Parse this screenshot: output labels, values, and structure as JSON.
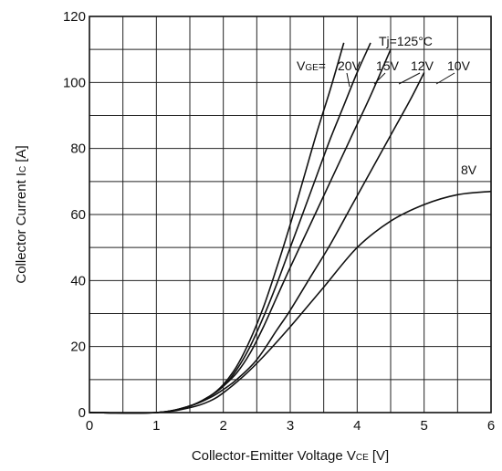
{
  "chart_data": {
    "type": "line",
    "xlabel": "Collector-Emitter Voltage V",
    "xlabel_sub": "CE",
    "xlabel_unit": "[V]",
    "ylabel": "Collector Current I",
    "ylabel_sub": "C",
    "ylabel_unit": "[A]",
    "xlim": [
      0,
      6
    ],
    "ylim": [
      0,
      120
    ],
    "x_ticks": [
      "0",
      "1",
      "2",
      "3",
      "4",
      "5",
      "6"
    ],
    "y_ticks": [
      "0",
      "20",
      "40",
      "60",
      "80",
      "100",
      "120"
    ],
    "grid": true,
    "annotations": {
      "condition": "Tj=125°C",
      "vge_prefix": "V",
      "vge_sub": "GE",
      "vge_eq": "=",
      "labels": [
        "20V",
        "15V",
        "12V",
        "10V",
        "8V"
      ]
    },
    "series": [
      {
        "name": "20V",
        "x": [
          0,
          1,
          1.5,
          1.8,
          2.0,
          2.2,
          2.4,
          2.6,
          2.8,
          3.0,
          3.2,
          3.4,
          3.6,
          3.8
        ],
        "y": [
          0,
          0,
          2,
          5,
          8.5,
          14,
          22,
          32,
          44,
          57,
          71,
          85,
          98,
          112
        ]
      },
      {
        "name": "15V",
        "x": [
          0,
          1,
          1.5,
          1.8,
          2.0,
          2.2,
          2.4,
          2.6,
          2.8,
          3.0,
          3.2,
          3.4,
          3.6,
          3.8,
          4.0,
          4.2
        ],
        "y": [
          0,
          0,
          2,
          5,
          8,
          13,
          20,
          29,
          39,
          50,
          61,
          72,
          83,
          93,
          103,
          112
        ]
      },
      {
        "name": "12V",
        "x": [
          0,
          1,
          1.5,
          1.8,
          2.0,
          2.2,
          2.4,
          2.6,
          2.8,
          3.0,
          3.3,
          3.6,
          3.9,
          4.2,
          4.5
        ],
        "y": [
          0,
          0,
          2,
          5,
          8,
          12,
          18,
          26,
          35,
          44,
          57,
          70,
          83,
          96,
          110
        ]
      },
      {
        "name": "10V",
        "x": [
          0,
          1,
          1.5,
          1.8,
          2.0,
          2.2,
          2.5,
          2.8,
          3.0,
          3.3,
          3.6,
          3.9,
          4.2,
          4.5,
          4.8,
          5.0
        ],
        "y": [
          0,
          0,
          2,
          4.5,
          7,
          10,
          16,
          25,
          31,
          41,
          51,
          62,
          73,
          84,
          95,
          103
        ]
      },
      {
        "name": "8V",
        "x": [
          0,
          1,
          1.5,
          1.8,
          2.0,
          2.3,
          2.6,
          3.0,
          3.5,
          4.0,
          4.5,
          5.0,
          5.5,
          6.0
        ],
        "y": [
          0,
          0,
          1.5,
          3.5,
          6,
          11,
          17,
          26,
          38,
          50,
          58,
          63,
          66,
          67
        ]
      }
    ]
  }
}
